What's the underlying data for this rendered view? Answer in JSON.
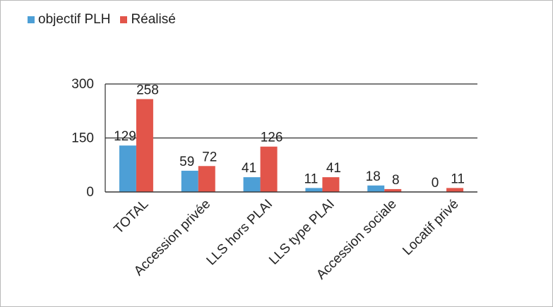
{
  "chart_data": {
    "type": "bar",
    "categories": [
      "TOTAL",
      "Accession privée",
      "LLS hors PLAI",
      "LLS type PLAI",
      "Accession sociale",
      "Locatif privé"
    ],
    "series": [
      {
        "name": "objectif PLH",
        "values": [
          129,
          59,
          41,
          11,
          18,
          0
        ],
        "color": "#4d9fd6"
      },
      {
        "name": "Réalisé",
        "values": [
          258,
          72,
          126,
          41,
          8,
          11
        ],
        "color": "#e2554a"
      }
    ],
    "value_labels": [
      [
        "129",
        "258"
      ],
      [
        "59",
        "72"
      ],
      [
        "41",
        "126"
      ],
      [
        "11",
        "41"
      ],
      [
        "18",
        "8"
      ],
      [
        "0",
        "11"
      ]
    ],
    "ylim": [
      0,
      300
    ],
    "yticks": [
      0,
      150,
      300
    ],
    "grid": true,
    "legend_position": "top-left"
  }
}
